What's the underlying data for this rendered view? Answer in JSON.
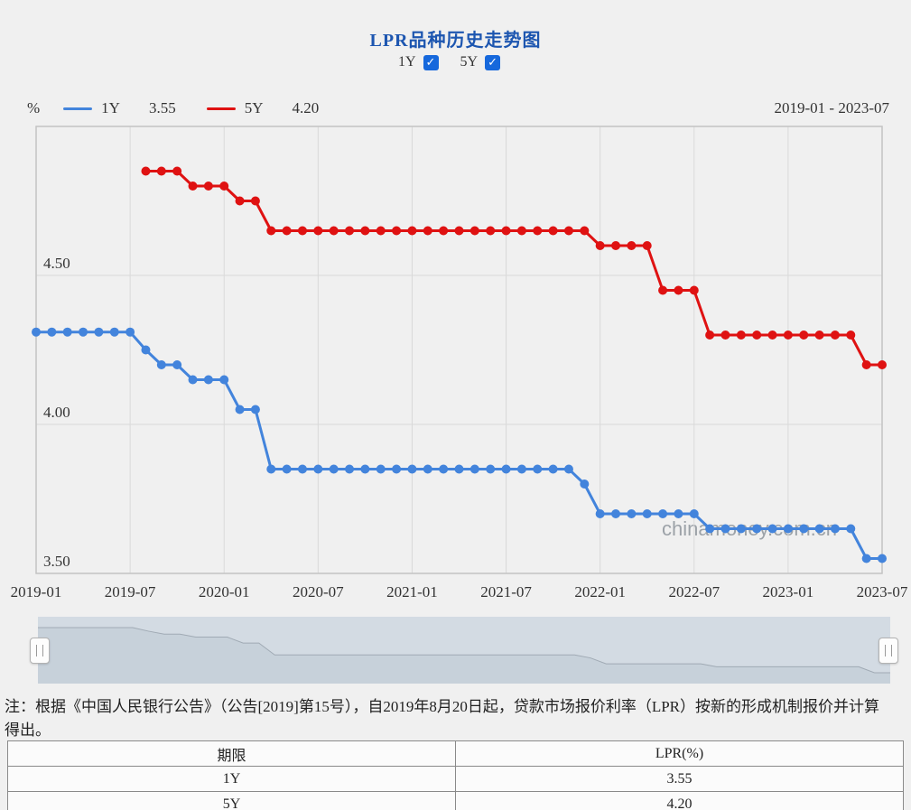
{
  "page": {
    "title": "LPR品种历史走势图",
    "watermark": "chinamoney.com.cn",
    "note": "注：根据《中国人民银行公告》（公告[2019]第15号），自2019年8月20日起，贷款市场报价利率（LPR）按新的形成机制报价并计算得出。"
  },
  "controls": {
    "check_glyph": "✓",
    "series_1y_label": "1Y",
    "series_5y_label": "5Y",
    "series_1y_checked": true,
    "series_5y_checked": true
  },
  "legend": {
    "unit": "%",
    "range": "2019-01 - 2023-07",
    "items": [
      {
        "label": "1Y",
        "value": "3.55",
        "color": "#4384dc"
      },
      {
        "label": "5Y",
        "value": "4.20",
        "color": "#df1212"
      }
    ]
  },
  "chart_data": {
    "type": "line",
    "title": "LPR品种历史走势图",
    "x_start": "2019-01",
    "x_end": "2023-07",
    "months_total": 54,
    "x_ticks": [
      "2019-01",
      "2019-07",
      "2020-01",
      "2020-07",
      "2021-01",
      "2021-07",
      "2022-01",
      "2022-07",
      "2023-01",
      "2023-07"
    ],
    "x_tick_months": [
      0,
      6,
      12,
      18,
      24,
      30,
      36,
      42,
      48,
      54
    ],
    "y_ticks": [
      {
        "label": "4.50",
        "value": 4.5
      },
      {
        "label": "4.00",
        "value": 4.0
      },
      {
        "label": "3.50",
        "value": 3.5
      }
    ],
    "ylim": [
      3.5,
      5.0
    ],
    "grid": true,
    "series": [
      {
        "name": "1Y",
        "color": "#4384dc",
        "start_month": 0,
        "values": [
          4.31,
          4.31,
          4.31,
          4.31,
          4.31,
          4.31,
          4.31,
          4.25,
          4.2,
          4.2,
          4.15,
          4.15,
          4.15,
          4.05,
          4.05,
          3.85,
          3.85,
          3.85,
          3.85,
          3.85,
          3.85,
          3.85,
          3.85,
          3.85,
          3.85,
          3.85,
          3.85,
          3.85,
          3.85,
          3.85,
          3.85,
          3.85,
          3.85,
          3.85,
          3.85,
          3.8,
          3.7,
          3.7,
          3.7,
          3.7,
          3.7,
          3.7,
          3.7,
          3.65,
          3.65,
          3.65,
          3.65,
          3.65,
          3.65,
          3.65,
          3.65,
          3.65,
          3.65,
          3.55,
          3.55
        ]
      },
      {
        "name": "5Y",
        "color": "#df1212",
        "start_month": 7,
        "values": [
          4.85,
          4.85,
          4.85,
          4.8,
          4.8,
          4.8,
          4.75,
          4.75,
          4.65,
          4.65,
          4.65,
          4.65,
          4.65,
          4.65,
          4.65,
          4.65,
          4.65,
          4.65,
          4.65,
          4.65,
          4.65,
          4.65,
          4.65,
          4.65,
          4.65,
          4.65,
          4.65,
          4.65,
          4.65,
          4.6,
          4.6,
          4.6,
          4.6,
          4.45,
          4.45,
          4.45,
          4.3,
          4.3,
          4.3,
          4.3,
          4.3,
          4.3,
          4.3,
          4.3,
          4.3,
          4.3,
          4.2,
          4.2
        ]
      }
    ],
    "navigator_series": "1Y"
  },
  "table": {
    "headers": [
      "期限",
      "LPR(%)"
    ],
    "rows": [
      [
        "1Y",
        "3.55"
      ],
      [
        "5Y",
        "4.20"
      ]
    ]
  }
}
